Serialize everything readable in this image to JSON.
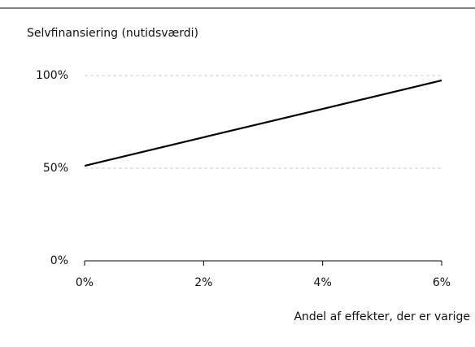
{
  "chart_data": {
    "type": "line",
    "title": "Selvfinansiering (nutidsværdi)",
    "x_label": "Andel af effekter, der er varige",
    "x": [
      0,
      2,
      4,
      6
    ],
    "series": [
      {
        "name": "Selvfinansiering",
        "color": "#000000",
        "values": [
          51.3,
          66.7,
          82.0,
          97.4
        ]
      }
    ],
    "xlim": [
      0,
      6
    ],
    "xticks": [
      {
        "value": 0,
        "label": "0%"
      },
      {
        "value": 2,
        "label": "2%"
      },
      {
        "value": 4,
        "label": "4%"
      },
      {
        "value": 6,
        "label": "6%"
      }
    ],
    "ylim": [
      0,
      100
    ],
    "yticks": [
      {
        "value": 0,
        "label": "0%"
      },
      {
        "value": 50,
        "label": "50%"
      },
      {
        "value": 100,
        "label": "100%"
      }
    ],
    "grid": true
  }
}
